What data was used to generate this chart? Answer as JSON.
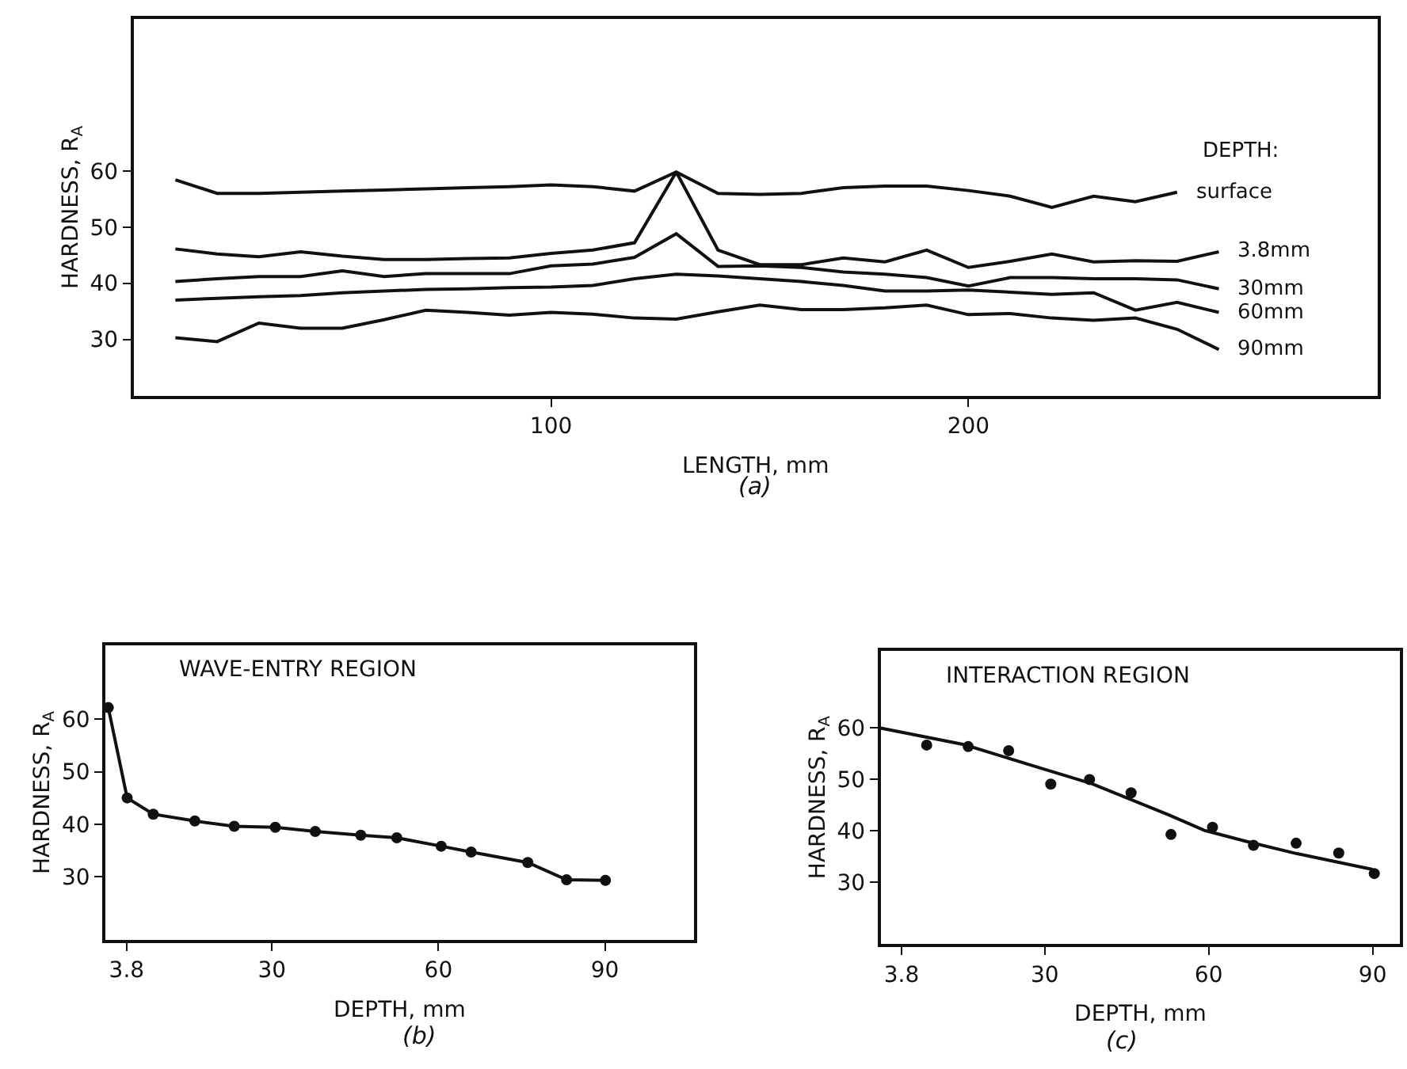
{
  "chart_data": [
    {
      "type": "line",
      "xlabel": "LENGTH, mm",
      "ylabel": "HARDNESS, R$_{A}$",
      "legend_title": "DEPTH:",
      "annotations": [
        "(a)"
      ],
      "xlim": [
        0,
        298
      ],
      "ylim": [
        20,
        87
      ],
      "xticks": [
        100,
        200
      ],
      "yticks": [
        30,
        40,
        50,
        60
      ],
      "legend": false,
      "marker": "none",
      "line_style": "solid",
      "series": [
        {
          "name": "surface",
          "color": "#111111",
          "x": [
            10,
            20,
            30,
            40,
            50,
            60,
            70,
            80,
            90,
            100,
            110,
            120,
            130,
            140,
            150,
            160,
            170,
            180,
            190,
            200,
            210,
            220,
            230,
            240,
            250
          ],
          "values": [
            58.4,
            56,
            56,
            56.2,
            56.4,
            56.6,
            56.8,
            57,
            57.2,
            57.5,
            57.2,
            56.4,
            59.8,
            56,
            55.8,
            56,
            57,
            57.3,
            57.3,
            56.5,
            55.5,
            53.5,
            55.5,
            54.5,
            56.2
          ]
        },
        {
          "name": "3.8mm",
          "color": "#111111",
          "x": [
            10,
            20,
            30,
            40,
            50,
            60,
            70,
            80,
            90,
            100,
            110,
            120,
            130,
            140,
            150,
            160,
            170,
            180,
            190,
            200,
            210,
            220,
            230,
            240,
            250,
            260
          ],
          "values": [
            46.1,
            45.2,
            44.7,
            45.6,
            44.8,
            44.2,
            44.2,
            44.4,
            44.5,
            45.3,
            45.9,
            47.2,
            59.8,
            45.9,
            43.3,
            43.3,
            44.5,
            43.8,
            45.9,
            42.8,
            43.9,
            45.2,
            43.8,
            44,
            43.9,
            45.6
          ]
        },
        {
          "name": "30mm",
          "color": "#111111",
          "x": [
            10,
            20,
            30,
            40,
            50,
            60,
            70,
            80,
            90,
            100,
            110,
            120,
            130,
            140,
            150,
            160,
            170,
            180,
            190,
            200,
            210,
            220,
            230,
            240,
            250,
            260
          ],
          "values": [
            40.3,
            40.8,
            41.2,
            41.2,
            42.2,
            41.2,
            41.7,
            41.7,
            41.7,
            43.1,
            43.4,
            44.6,
            48.8,
            43,
            43.1,
            42.8,
            42,
            41.6,
            41,
            39.5,
            41,
            41,
            40.8,
            40.8,
            40.6,
            39
          ]
        },
        {
          "name": "60mm",
          "color": "#111111",
          "x": [
            10,
            20,
            30,
            40,
            50,
            60,
            70,
            80,
            90,
            100,
            110,
            120,
            130,
            140,
            150,
            160,
            170,
            180,
            190,
            200,
            210,
            220,
            230,
            240,
            250,
            260
          ],
          "values": [
            37,
            37.3,
            37.6,
            37.8,
            38.3,
            38.6,
            38.9,
            39,
            39.2,
            39.3,
            39.6,
            40.8,
            41.6,
            41.3,
            40.8,
            40.3,
            39.6,
            38.6,
            38.6,
            38.8,
            38.4,
            38,
            38.3,
            35.2,
            36.6,
            34.8
          ]
        },
        {
          "name": "90mm",
          "color": "#111111",
          "x": [
            10,
            20,
            30,
            40,
            50,
            60,
            70,
            80,
            90,
            100,
            110,
            120,
            130,
            140,
            150,
            160,
            170,
            180,
            190,
            200,
            210,
            220,
            230,
            240,
            250,
            260
          ],
          "values": [
            30.3,
            29.6,
            32.9,
            32,
            32,
            33.5,
            35.2,
            34.8,
            34.3,
            34.8,
            34.5,
            33.8,
            33.6,
            34.9,
            36.1,
            35.3,
            35.3,
            35.6,
            36.1,
            34.4,
            34.6,
            33.8,
            33.4,
            33.8,
            31.8,
            28.2
          ]
        }
      ]
    },
    {
      "type": "line",
      "title": "WAVE-ENTRY REGION",
      "xlabel": "DEPTH, mm",
      "ylabel": "HARDNESS, R$_{A}$",
      "annotations": [
        "(b)"
      ],
      "xlim": [
        0,
        106
      ],
      "ylim": [
        18,
        74
      ],
      "xticks": [
        {
          "value": 3.8,
          "label": "3.8"
        },
        30,
        60,
        90
      ],
      "yticks": [
        30,
        40,
        50,
        60
      ],
      "legend": false,
      "marker": "circle",
      "line_style": "solid",
      "series": [
        {
          "color": "#111111",
          "x": [
            0.5,
            3.9,
            8.6,
            16.1,
            23.2,
            30.6,
            37.8,
            46,
            52.5,
            60.5,
            65.9,
            76.1,
            83.1,
            90.1
          ],
          "values": [
            62.2,
            45,
            41.9,
            40.6,
            39.6,
            39.4,
            38.6,
            37.9,
            37.4,
            35.8,
            34.7,
            32.7,
            29.4,
            29.3
          ]
        }
      ]
    },
    {
      "type": "line",
      "title": "INTERACTION REGION",
      "xlabel": "DEPTH, mm",
      "ylabel": "HARDNESS, R$_{A}$",
      "annotations": [
        "(c)"
      ],
      "xlim": [
        0,
        95
      ],
      "ylim": [
        18,
        75
      ],
      "xticks": [
        {
          "value": 3.8,
          "label": "3.8"
        },
        30,
        60,
        90
      ],
      "yticks": [
        30,
        40,
        50,
        60
      ],
      "legend": false,
      "line_style": "solid",
      "series": [
        {
          "type": "scatter",
          "marker": "circle",
          "color": "#111111",
          "x": [
            8.4,
            16,
            23.4,
            31.1,
            38.2,
            45.8,
            53.1,
            60.7,
            68.2,
            76,
            83.8,
            90.3
          ],
          "values": [
            56.7,
            56.4,
            55.6,
            49.1,
            50,
            47.4,
            39.3,
            40.7,
            37.2,
            37.6,
            35.7,
            31.7
          ]
        },
        {
          "type": "line",
          "marker": "none",
          "color": "#111111",
          "x": [
            0,
            15.2,
            29.3,
            38.6,
            52.7,
            59.2,
            66.7,
            76,
            90
          ],
          "values": [
            60,
            56.8,
            52.2,
            49.2,
            43.1,
            40.1,
            38,
            35.6,
            32.5
          ]
        }
      ]
    }
  ]
}
